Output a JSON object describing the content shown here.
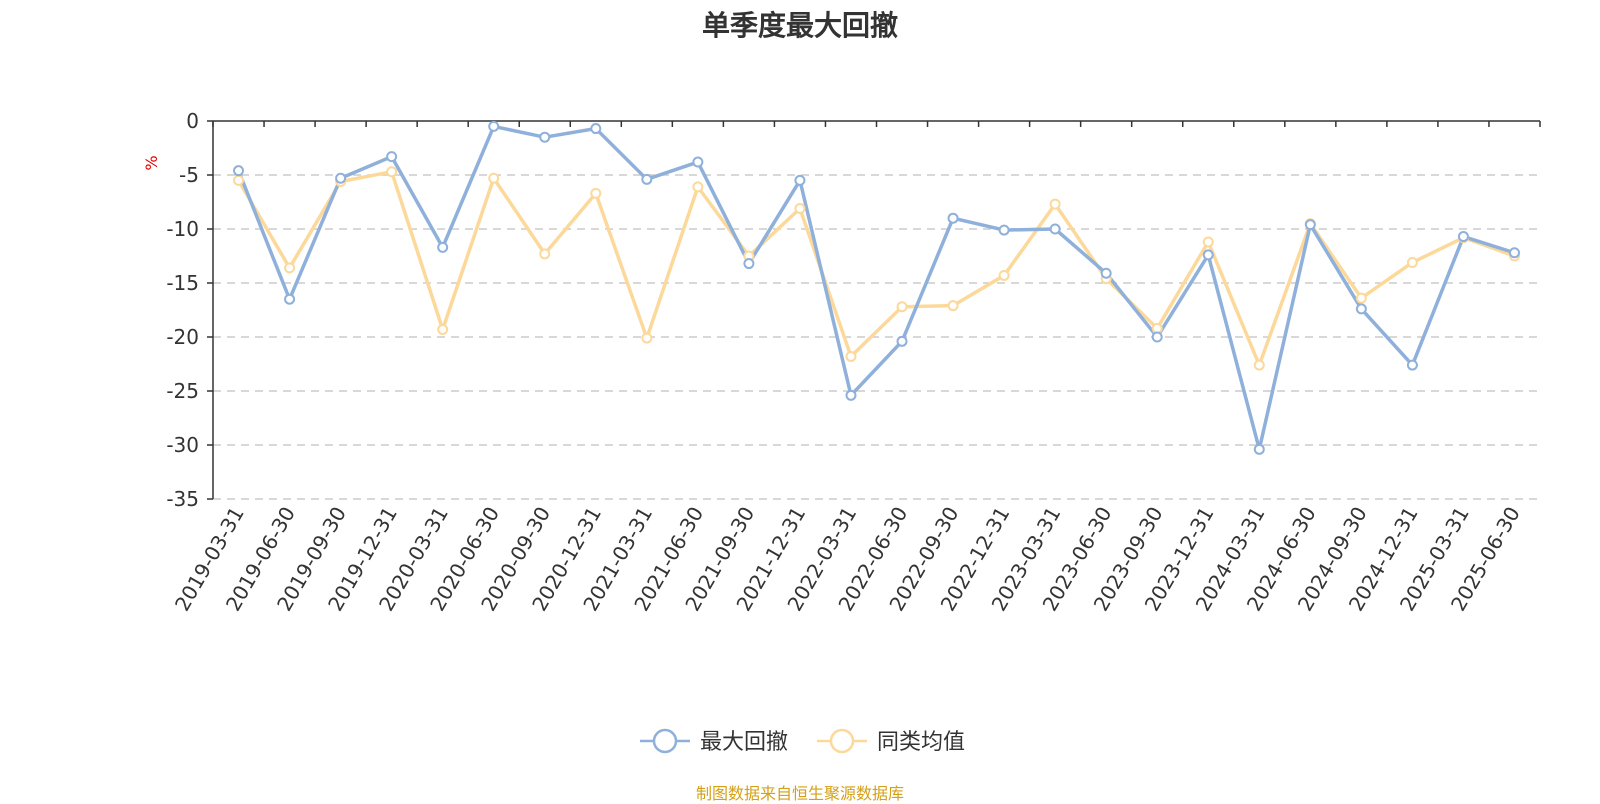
{
  "chart_data": {
    "type": "line",
    "title": "单季度最大回撤",
    "ylabel": "%",
    "ylim": [
      -35,
      0
    ],
    "yticks": [
      0,
      -5,
      -10,
      -15,
      -20,
      -25,
      -30,
      -35
    ],
    "grid": true,
    "legend_position": "bottom",
    "categories": [
      "2019-03-31",
      "2019-06-30",
      "2019-09-30",
      "2019-12-31",
      "2020-03-31",
      "2020-06-30",
      "2020-09-30",
      "2020-12-31",
      "2021-03-31",
      "2021-06-30",
      "2021-09-30",
      "2021-12-31",
      "2022-03-31",
      "2022-06-30",
      "2022-09-30",
      "2022-12-31",
      "2023-03-31",
      "2023-06-30",
      "2023-09-30",
      "2023-12-31",
      "2024-03-31",
      "2024-06-30",
      "2024-09-30",
      "2024-12-31",
      "2025-03-31",
      "2025-06-30"
    ],
    "series": [
      {
        "name": "最大回撤",
        "color": "#8eb0db",
        "values": [
          -4.6,
          -16.5,
          -5.3,
          -3.3,
          -11.7,
          -0.5,
          -1.5,
          -0.7,
          -5.4,
          -3.8,
          -13.2,
          -5.5,
          -25.4,
          -20.4,
          -9.0,
          -10.1,
          -10.0,
          -14.1,
          -20.0,
          -12.4,
          -30.4,
          -9.6,
          -17.4,
          -22.6,
          -10.7,
          -12.2
        ]
      },
      {
        "name": "同类均值",
        "color": "#fcd99a",
        "values": [
          -5.5,
          -13.6,
          -5.6,
          -4.7,
          -19.3,
          -5.3,
          -12.3,
          -6.7,
          -20.1,
          -6.1,
          -12.5,
          -8.1,
          -21.8,
          -17.2,
          -17.1,
          -14.3,
          -7.7,
          -14.6,
          -19.2,
          -11.2,
          -22.6,
          -9.5,
          -16.4,
          -13.1,
          -10.8,
          -12.5
        ]
      }
    ]
  },
  "source_text": "制图数据来自恒生聚源数据库"
}
